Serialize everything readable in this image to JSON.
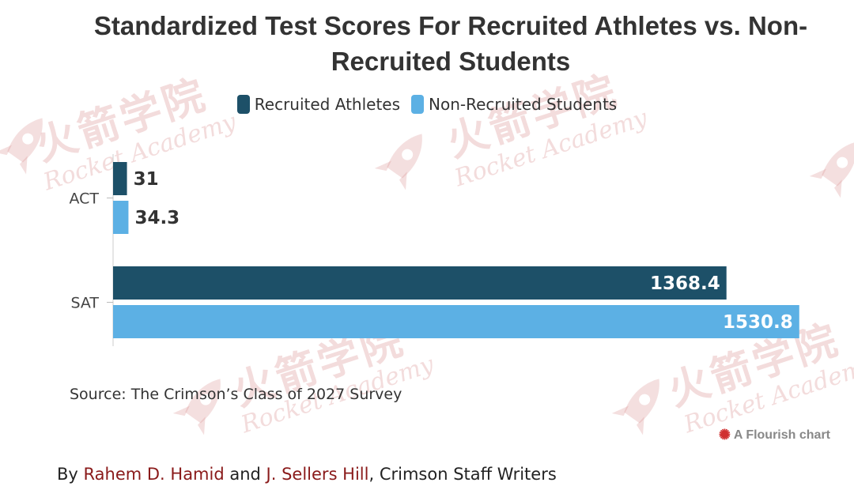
{
  "chart_data": {
    "type": "bar",
    "orientation": "horizontal",
    "title": "Standardized Test Scores For Recruited Athletes vs. Non-Recruited Students",
    "categories": [
      "ACT",
      "SAT"
    ],
    "series": [
      {
        "name": "Recruited Athletes",
        "color": "#1d5068",
        "values": [
          31,
          1368.4
        ],
        "labels": [
          "31",
          "1368.4"
        ]
      },
      {
        "name": "Non-Recruited Students",
        "color": "#5cb0e4",
        "values": [
          34.3,
          1530.8
        ],
        "labels": [
          "34.3",
          "1530.8"
        ]
      }
    ],
    "xlim": [
      0,
      1600
    ],
    "grid": false,
    "legend_position": "top-center"
  },
  "source": "Source: The Crimson’s Class of 2027 Survey",
  "credit": "A Flourish chart",
  "byline": {
    "prefix": "By ",
    "author1": "Rahem D. Hamid",
    "joiner": " and ",
    "author2": "J. Sellers Hill",
    "suffix": ", Crimson Staff Writers"
  },
  "watermark": {
    "cn": "火箭学院",
    "en": "Rocket Academy"
  },
  "colors": {
    "author_link": "#8a1a1a",
    "flourish_icon": "#d03030"
  }
}
